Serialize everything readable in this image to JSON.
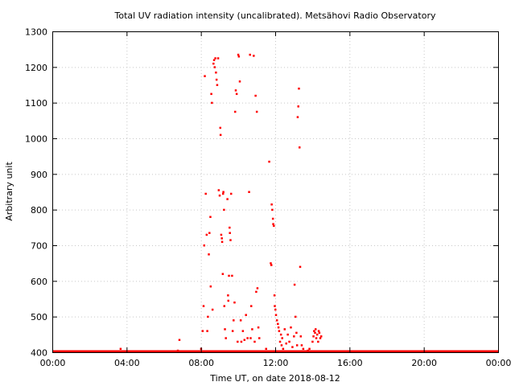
{
  "chart_data": {
    "type": "scatter",
    "title": "Total UV radiation intensity (uncalibrated). Metsähovi Radio Observatory",
    "xlabel": "Time UT, on date 2018-08-12",
    "ylabel": "Arbitrary unit",
    "xlim": [
      "00:00",
      "24:00"
    ],
    "ylim": [
      400,
      1300
    ],
    "x_tick_labels": [
      "00:00",
      "04:00",
      "08:00",
      "12:00",
      "16:00",
      "20:00",
      "00:00"
    ],
    "y_tick_labels": [
      "400",
      "500",
      "600",
      "700",
      "800",
      "900",
      "1000",
      "1100",
      "1200",
      "1300"
    ],
    "grid": true,
    "marker_color": "#ff0000",
    "series": [
      {
        "baseline_value": 400,
        "baseline_from": "00:00",
        "baseline_to": "24:00",
        "points": [
          [
            "03:40",
            410
          ],
          [
            "06:45",
            405
          ],
          [
            "06:50",
            435
          ],
          [
            "08:00",
            410
          ],
          [
            "08:05",
            460
          ],
          [
            "08:08",
            530
          ],
          [
            "08:10",
            700
          ],
          [
            "08:12",
            1175
          ],
          [
            "08:15",
            845
          ],
          [
            "08:18",
            730
          ],
          [
            "08:20",
            460
          ],
          [
            "08:22",
            500
          ],
          [
            "08:25",
            675
          ],
          [
            "08:27",
            735
          ],
          [
            "08:30",
            780
          ],
          [
            "08:31",
            585
          ],
          [
            "08:33",
            1125
          ],
          [
            "08:35",
            1100
          ],
          [
            "08:37",
            520
          ],
          [
            "08:40",
            1210
          ],
          [
            "08:42",
            1220
          ],
          [
            "08:44",
            1200
          ],
          [
            "08:46",
            1225
          ],
          [
            "08:48",
            1185
          ],
          [
            "08:50",
            1165
          ],
          [
            "08:52",
            1150
          ],
          [
            "08:55",
            1225
          ],
          [
            "08:57",
            855
          ],
          [
            "09:00",
            840
          ],
          [
            "09:02",
            1030
          ],
          [
            "09:03",
            1010
          ],
          [
            "09:05",
            730
          ],
          [
            "09:07",
            720
          ],
          [
            "09:08",
            710
          ],
          [
            "09:10",
            620
          ],
          [
            "09:11",
            845
          ],
          [
            "09:12",
            850
          ],
          [
            "09:14",
            800
          ],
          [
            "09:15",
            530
          ],
          [
            "09:17",
            465
          ],
          [
            "09:20",
            440
          ],
          [
            "09:25",
            830
          ],
          [
            "09:27",
            560
          ],
          [
            "09:28",
            545
          ],
          [
            "09:30",
            615
          ],
          [
            "09:32",
            750
          ],
          [
            "09:33",
            735
          ],
          [
            "09:35",
            715
          ],
          [
            "09:37",
            845
          ],
          [
            "09:40",
            615
          ],
          [
            "09:42",
            460
          ],
          [
            "09:45",
            490
          ],
          [
            "09:48",
            540
          ],
          [
            "09:50",
            1075
          ],
          [
            "09:52",
            1135
          ],
          [
            "09:55",
            1125
          ],
          [
            "09:58",
            430
          ],
          [
            "10:00",
            1235
          ],
          [
            "10:02",
            1230
          ],
          [
            "10:05",
            1160
          ],
          [
            "10:08",
            490
          ],
          [
            "10:10",
            430
          ],
          [
            "10:15",
            460
          ],
          [
            "10:20",
            435
          ],
          [
            "10:25",
            505
          ],
          [
            "10:30",
            440
          ],
          [
            "10:35",
            850
          ],
          [
            "10:38",
            1235
          ],
          [
            "10:40",
            440
          ],
          [
            "10:42",
            530
          ],
          [
            "10:45",
            465
          ],
          [
            "10:50",
            1232
          ],
          [
            "10:53",
            430
          ],
          [
            "10:56",
            1120
          ],
          [
            "10:58",
            570
          ],
          [
            "11:00",
            1075
          ],
          [
            "11:02",
            580
          ],
          [
            "11:05",
            470
          ],
          [
            "11:08",
            440
          ],
          [
            "11:30",
            410
          ],
          [
            "11:40",
            935
          ],
          [
            "11:45",
            650
          ],
          [
            "11:47",
            645
          ],
          [
            "11:48",
            815
          ],
          [
            "11:50",
            800
          ],
          [
            "11:52",
            775
          ],
          [
            "11:53",
            760
          ],
          [
            "11:55",
            755
          ],
          [
            "11:57",
            560
          ],
          [
            "11:58",
            530
          ],
          [
            "12:00",
            520
          ],
          [
            "12:02",
            505
          ],
          [
            "12:05",
            490
          ],
          [
            "12:08",
            480
          ],
          [
            "12:10",
            470
          ],
          [
            "12:12",
            460
          ],
          [
            "12:15",
            430
          ],
          [
            "12:18",
            450
          ],
          [
            "12:20",
            420
          ],
          [
            "12:22",
            440
          ],
          [
            "12:25",
            410
          ],
          [
            "12:30",
            465
          ],
          [
            "12:35",
            425
          ],
          [
            "12:40",
            450
          ],
          [
            "12:45",
            430
          ],
          [
            "12:50",
            470
          ],
          [
            "12:55",
            415
          ],
          [
            "13:00",
            445
          ],
          [
            "13:02",
            590
          ],
          [
            "13:05",
            500
          ],
          [
            "13:08",
            455
          ],
          [
            "13:10",
            420
          ],
          [
            "13:12",
            1060
          ],
          [
            "13:14",
            1090
          ],
          [
            "13:16",
            1140
          ],
          [
            "13:18",
            975
          ],
          [
            "13:20",
            640
          ],
          [
            "13:22",
            445
          ],
          [
            "13:25",
            420
          ],
          [
            "13:30",
            410
          ],
          [
            "13:45",
            405
          ],
          [
            "13:50",
            410
          ],
          [
            "14:00",
            430
          ],
          [
            "14:03",
            445
          ],
          [
            "14:05",
            460
          ],
          [
            "14:08",
            455
          ],
          [
            "14:10",
            465
          ],
          [
            "14:12",
            440
          ],
          [
            "14:15",
            450
          ],
          [
            "14:18",
            430
          ],
          [
            "14:20",
            460
          ],
          [
            "14:22",
            455
          ],
          [
            "14:25",
            440
          ],
          [
            "14:28",
            445
          ]
        ]
      }
    ]
  }
}
